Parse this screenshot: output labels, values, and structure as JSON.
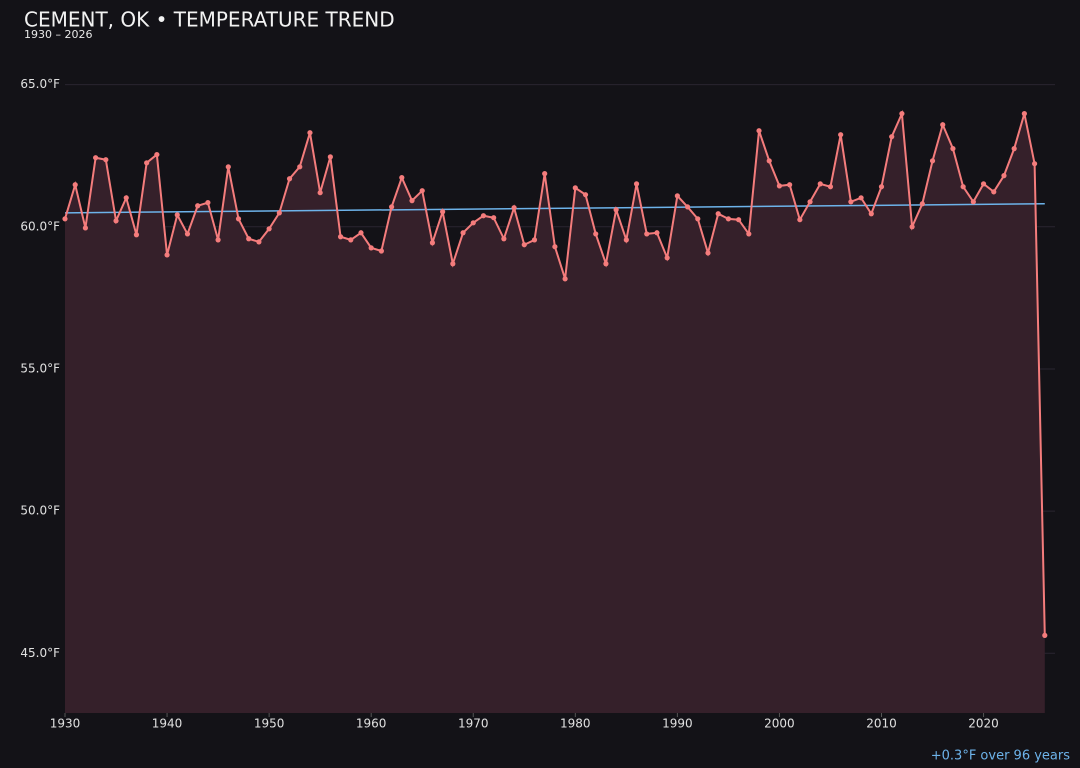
{
  "chart_data": {
    "type": "line",
    "title": "CEMENT, OK • TEMPERATURE TREND",
    "subtitle": "1930 – 2026",
    "annotation": "+0.3°F over 96 years",
    "x": [
      1930,
      1931,
      1932,
      1933,
      1934,
      1935,
      1936,
      1937,
      1938,
      1939,
      1940,
      1941,
      1942,
      1943,
      1944,
      1945,
      1946,
      1947,
      1948,
      1949,
      1950,
      1951,
      1952,
      1953,
      1954,
      1955,
      1956,
      1957,
      1958,
      1959,
      1960,
      1961,
      1962,
      1963,
      1964,
      1965,
      1966,
      1967,
      1968,
      1969,
      1970,
      1971,
      1972,
      1973,
      1974,
      1975,
      1976,
      1977,
      1978,
      1979,
      1980,
      1981,
      1982,
      1983,
      1984,
      1985,
      1986,
      1987,
      1988,
      1989,
      1990,
      1991,
      1992,
      1993,
      1994,
      1995,
      1996,
      1997,
      1998,
      1999,
      2000,
      2001,
      2002,
      2003,
      2004,
      2005,
      2006,
      2007,
      2008,
      2009,
      2010,
      2011,
      2012,
      2013,
      2014,
      2015,
      2016,
      2017,
      2018,
      2019,
      2020,
      2021,
      2022,
      2023,
      2024,
      2025,
      2026
    ],
    "values": [
      60.28,
      61.48,
      59.96,
      62.43,
      62.36,
      60.21,
      61.02,
      59.72,
      62.25,
      62.54,
      59.01,
      60.42,
      59.75,
      60.74,
      60.85,
      59.54,
      62.11,
      60.28,
      59.58,
      59.47,
      59.93,
      60.49,
      61.69,
      62.11,
      63.31,
      61.2,
      62.46,
      59.65,
      59.54,
      59.79,
      59.26,
      59.15,
      60.7,
      61.73,
      60.92,
      61.27,
      59.44,
      60.53,
      58.7,
      59.79,
      60.14,
      60.39,
      60.32,
      59.58,
      60.67,
      59.37,
      59.54,
      61.87,
      59.3,
      58.17,
      61.37,
      61.13,
      59.75,
      58.7,
      60.6,
      59.54,
      61.51,
      59.75,
      59.79,
      58.91,
      61.09,
      60.7,
      60.28,
      59.08,
      60.46,
      60.28,
      60.25,
      59.75,
      63.38,
      62.32,
      61.44,
      61.48,
      60.25,
      60.88,
      61.51,
      61.41,
      63.24,
      60.88,
      61.02,
      60.46,
      61.41,
      63.17,
      63.98,
      60.0,
      60.81,
      62.32,
      63.59,
      62.75,
      61.41,
      60.88,
      61.51,
      61.23,
      61.8,
      62.75,
      63.98,
      62.22,
      45.63
    ],
    "color": "#f47c7c",
    "area_color": "#35202a",
    "trend": {
      "x": [
        1930,
        2026
      ],
      "values": [
        60.49,
        60.81
      ],
      "color": "#6db3ea"
    },
    "xlim": [
      1930,
      2027
    ],
    "ylim": [
      42.9,
      66.5
    ],
    "xticks": [
      1930,
      1940,
      1950,
      1960,
      1970,
      1980,
      1990,
      2000,
      2010,
      2020
    ],
    "yticks": [
      {
        "value": 45,
        "label": "45.0°F"
      },
      {
        "value": 50,
        "label": "50.0°F"
      },
      {
        "value": 55,
        "label": "55.0°F"
      },
      {
        "value": 60,
        "label": "60.0°F"
      },
      {
        "value": 65,
        "label": "65.0°F"
      }
    ],
    "grid": true
  }
}
